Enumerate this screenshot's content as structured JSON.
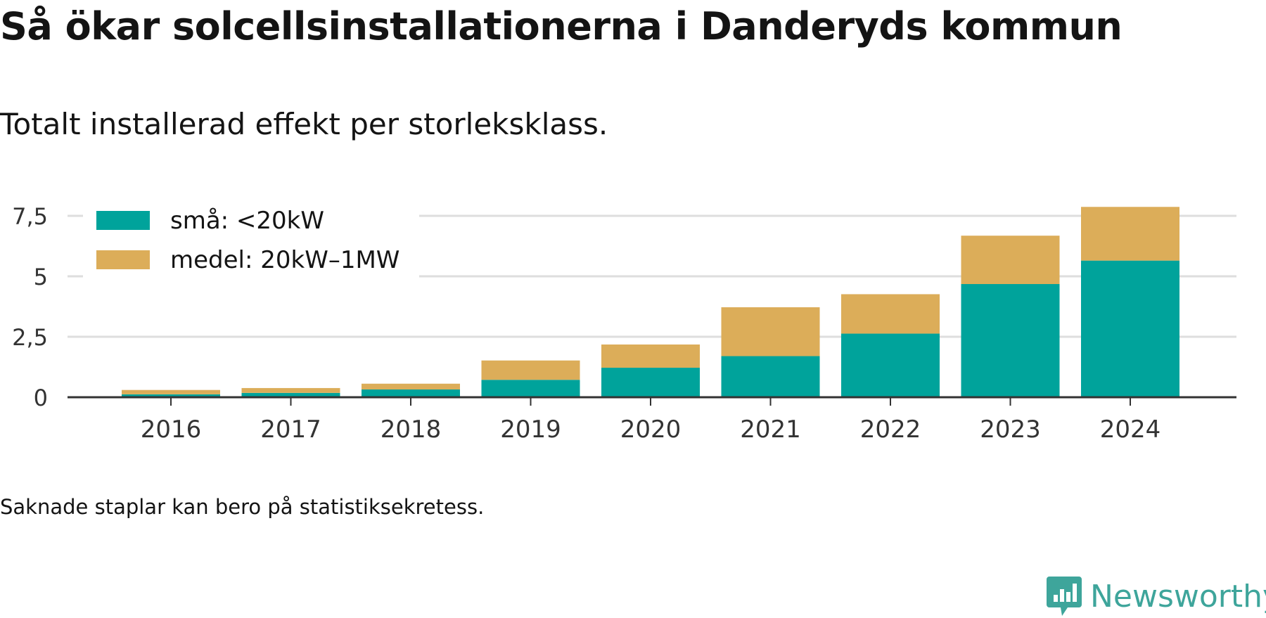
{
  "title": "Så ökar solcellsinstallationerna i Danderyds kommun",
  "subtitle": "Totalt installerad effekt per storleksklass.",
  "footnote": "Saknade staplar kan bero på statistiksekretess.",
  "brand": "Newsworthy",
  "colors": {
    "small": "#00a39b",
    "medium": "#dcad59",
    "brand": "#3ea59b",
    "grid": "#dedede",
    "axis": "#333333"
  },
  "chart_data": {
    "type": "bar",
    "stacked": true,
    "categories": [
      "2016",
      "2017",
      "2018",
      "2019",
      "2020",
      "2021",
      "2022",
      "2023",
      "2024"
    ],
    "series": [
      {
        "name": "små: <20kW",
        "values": [
          0.12,
          0.18,
          0.32,
          0.72,
          1.22,
          1.7,
          2.63,
          4.68,
          5.65
        ]
      },
      {
        "name": "medel: 20kW–1MW",
        "values": [
          0.18,
          0.2,
          0.24,
          0.8,
          0.96,
          2.02,
          1.63,
          2.0,
          2.22
        ]
      }
    ],
    "ylim": [
      0,
      7.9
    ],
    "yticks": [
      0,
      2.5,
      5,
      7.5
    ],
    "ytick_labels": [
      "0",
      "2,5",
      "5",
      "7,5"
    ],
    "grid": true,
    "legend_position": "top-left"
  }
}
